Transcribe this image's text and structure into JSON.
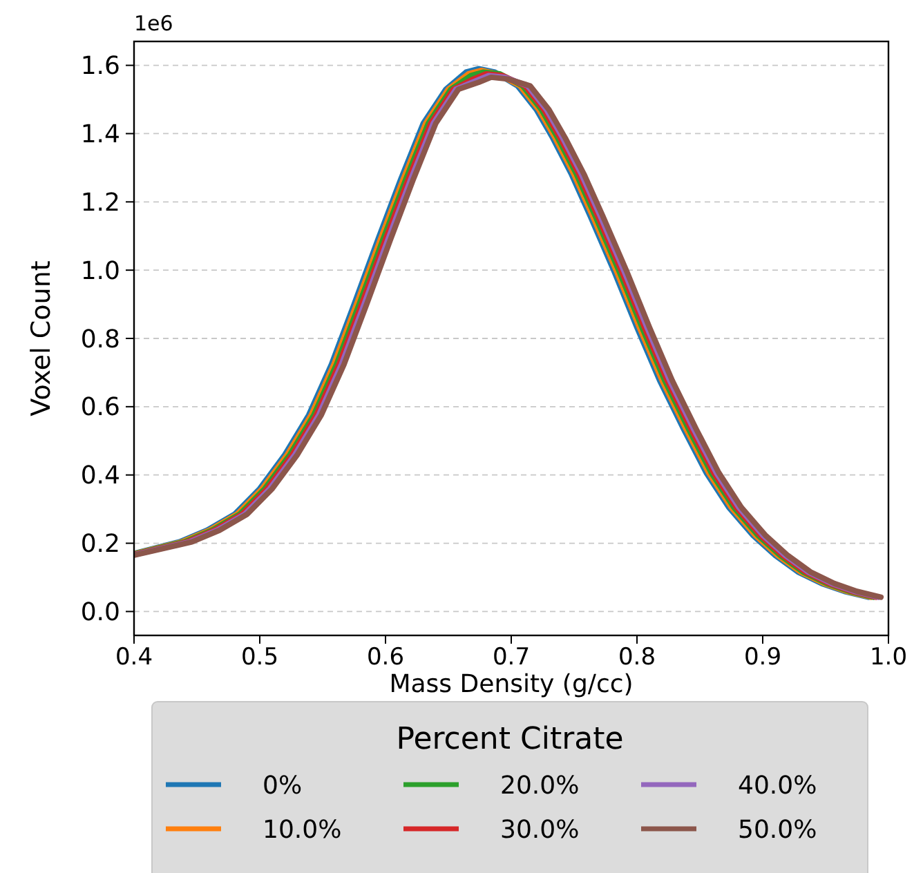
{
  "chart_data": {
    "type": "line",
    "xlabel": "Mass Density (g/cc)",
    "ylabel": "Voxel Count",
    "legend_title": "Percent Citrate",
    "legend": "bottom",
    "grid": "y",
    "annotations": [
      "1e6"
    ],
    "xlim": [
      0.4,
      1.0
    ],
    "xticks": [
      0.4,
      0.5,
      0.6,
      0.7,
      0.8,
      0.9,
      {
        "value": 1.0,
        "label": "1.0"
      }
    ],
    "ylim": [
      -0.07,
      1.67
    ],
    "yticks": [
      {
        "value": 0,
        "label": "0.0"
      },
      0.2,
      0.4,
      0.6,
      0.8,
      {
        "value": 1.0,
        "label": "1.0"
      },
      1.2,
      1.4,
      1.6
    ],
    "series": [
      {
        "name": "0%",
        "color": "#1f77b4",
        "x": [
          0.4,
          0.436,
          0.458,
          0.48,
          0.5,
          0.52,
          0.539,
          0.557,
          0.575,
          0.594,
          0.612,
          0.63,
          0.648,
          0.664,
          0.674,
          0.687,
          0.705,
          0.72,
          0.733,
          0.748,
          0.763,
          0.782,
          0.8,
          0.818,
          0.837,
          0.855,
          0.873,
          0.892,
          0.91,
          0.928,
          0.947,
          0.965,
          0.984
        ],
        "values": [
          0.17,
          0.204,
          0.238,
          0.285,
          0.36,
          0.46,
          0.576,
          0.724,
          0.9,
          1.09,
          1.265,
          1.43,
          1.53,
          1.58,
          1.59,
          1.58,
          1.54,
          1.47,
          1.387,
          1.28,
          1.157,
          0.995,
          0.832,
          0.677,
          0.535,
          0.407,
          0.305,
          0.224,
          0.164,
          0.116,
          0.082,
          0.059,
          0.042
        ]
      },
      {
        "name": "10.0%",
        "color": "#ff7f0e",
        "x": [
          0.4,
          0.438,
          0.46,
          0.482,
          0.502,
          0.522,
          0.541,
          0.559,
          0.577,
          0.596,
          0.614,
          0.632,
          0.65,
          0.666,
          0.676,
          0.689,
          0.707,
          0.722,
          0.735,
          0.75,
          0.765,
          0.784,
          0.802,
          0.82,
          0.839,
          0.857,
          0.875,
          0.894,
          0.912,
          0.93,
          0.949,
          0.967,
          0.986
        ],
        "values": [
          0.169,
          0.204,
          0.238,
          0.285,
          0.36,
          0.46,
          0.576,
          0.724,
          0.9,
          1.09,
          1.265,
          1.43,
          1.53,
          1.575,
          1.585,
          1.575,
          1.54,
          1.47,
          1.387,
          1.28,
          1.157,
          0.995,
          0.832,
          0.677,
          0.535,
          0.407,
          0.305,
          0.224,
          0.164,
          0.116,
          0.082,
          0.059,
          0.042
        ]
      },
      {
        "name": "20.0%",
        "color": "#2ca02c",
        "x": [
          0.4,
          0.44,
          0.462,
          0.484,
          0.504,
          0.524,
          0.543,
          0.561,
          0.579,
          0.598,
          0.616,
          0.634,
          0.652,
          0.668,
          0.678,
          0.691,
          0.709,
          0.724,
          0.737,
          0.752,
          0.767,
          0.786,
          0.804,
          0.822,
          0.841,
          0.859,
          0.877,
          0.896,
          0.914,
          0.932,
          0.951,
          0.969,
          0.988
        ],
        "values": [
          0.168,
          0.204,
          0.238,
          0.285,
          0.36,
          0.46,
          0.576,
          0.724,
          0.9,
          1.09,
          1.265,
          1.43,
          1.53,
          1.57,
          1.58,
          1.575,
          1.54,
          1.47,
          1.387,
          1.28,
          1.157,
          0.995,
          0.832,
          0.677,
          0.535,
          0.407,
          0.305,
          0.224,
          0.164,
          0.116,
          0.082,
          0.059,
          0.042
        ]
      },
      {
        "name": "30.0%",
        "color": "#d62728",
        "x": [
          0.4,
          0.442,
          0.464,
          0.486,
          0.506,
          0.526,
          0.545,
          0.563,
          0.581,
          0.6,
          0.618,
          0.636,
          0.654,
          0.67,
          0.68,
          0.693,
          0.711,
          0.726,
          0.739,
          0.754,
          0.769,
          0.788,
          0.806,
          0.824,
          0.843,
          0.861,
          0.879,
          0.898,
          0.916,
          0.934,
          0.953,
          0.971,
          0.99
        ],
        "values": [
          0.167,
          0.204,
          0.238,
          0.285,
          0.36,
          0.46,
          0.576,
          0.724,
          0.9,
          1.09,
          1.265,
          1.43,
          1.53,
          1.56,
          1.575,
          1.57,
          1.54,
          1.47,
          1.387,
          1.28,
          1.157,
          0.995,
          0.832,
          0.677,
          0.535,
          0.407,
          0.305,
          0.224,
          0.164,
          0.116,
          0.082,
          0.059,
          0.042
        ]
      },
      {
        "name": "40.0%",
        "color": "#9467bd",
        "x": [
          0.4,
          0.444,
          0.466,
          0.488,
          0.508,
          0.528,
          0.547,
          0.565,
          0.583,
          0.602,
          0.62,
          0.638,
          0.656,
          0.672,
          0.682,
          0.695,
          0.713,
          0.728,
          0.741,
          0.756,
          0.771,
          0.79,
          0.808,
          0.826,
          0.845,
          0.863,
          0.881,
          0.9,
          0.918,
          0.936,
          0.955,
          0.973,
          0.992
        ],
        "values": [
          0.166,
          0.204,
          0.238,
          0.285,
          0.36,
          0.46,
          0.576,
          0.724,
          0.9,
          1.09,
          1.265,
          1.43,
          1.53,
          1.555,
          1.57,
          1.565,
          1.54,
          1.47,
          1.387,
          1.28,
          1.157,
          0.995,
          0.832,
          0.677,
          0.535,
          0.407,
          0.305,
          0.224,
          0.164,
          0.116,
          0.082,
          0.059,
          0.042
        ]
      },
      {
        "name": "50.0%",
        "color": "#8c564b",
        "x": [
          0.4,
          0.446,
          0.468,
          0.49,
          0.51,
          0.53,
          0.549,
          0.567,
          0.585,
          0.604,
          0.622,
          0.64,
          0.658,
          0.674,
          0.684,
          0.697,
          0.715,
          0.73,
          0.743,
          0.758,
          0.773,
          0.792,
          0.81,
          0.828,
          0.847,
          0.865,
          0.883,
          0.902,
          0.92,
          0.938,
          0.957,
          0.975,
          0.994
        ],
        "values": [
          0.165,
          0.204,
          0.238,
          0.285,
          0.36,
          0.46,
          0.576,
          0.724,
          0.9,
          1.09,
          1.265,
          1.43,
          1.53,
          1.55,
          1.565,
          1.56,
          1.54,
          1.47,
          1.387,
          1.28,
          1.157,
          0.995,
          0.832,
          0.677,
          0.535,
          0.407,
          0.305,
          0.224,
          0.164,
          0.116,
          0.082,
          0.059,
          0.042
        ]
      }
    ]
  }
}
